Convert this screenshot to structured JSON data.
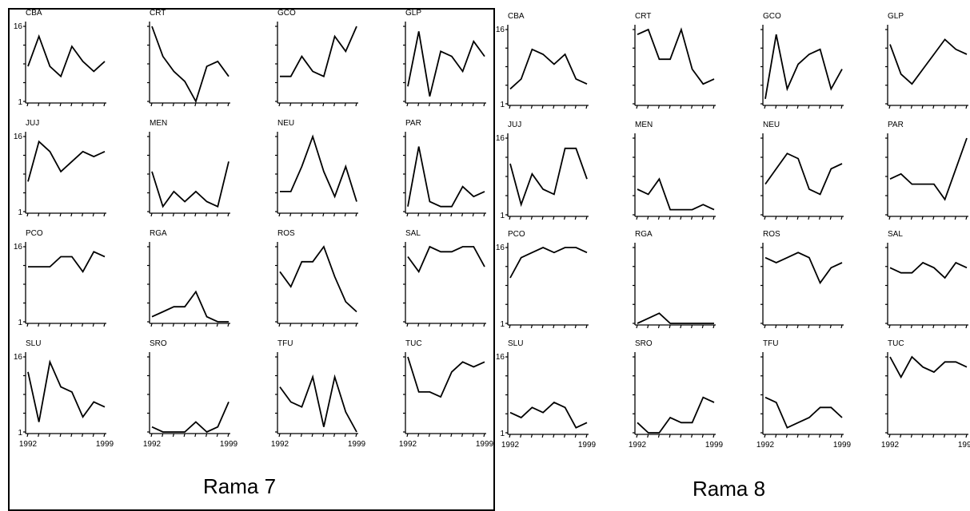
{
  "panels": [
    {
      "title": "Rama 7"
    },
    {
      "title": "Rama 8"
    }
  ],
  "axis": {
    "y_tick_labels": [
      "1",
      "16"
    ],
    "x_tick_labels": [
      "1992",
      "1999"
    ]
  },
  "chart_data": [
    {
      "panel": "Rama 7",
      "type": "line",
      "grid": false,
      "x": [
        1992,
        1993,
        1994,
        1995,
        1996,
        1997,
        1998,
        1999
      ],
      "ylim": [
        1,
        16
      ],
      "charts": [
        {
          "title": "CBA",
          "values": [
            8,
            14,
            8,
            6,
            12,
            9,
            7,
            9
          ]
        },
        {
          "title": "CRT",
          "values": [
            16,
            10,
            7,
            5,
            1,
            8,
            9,
            6
          ]
        },
        {
          "title": "GCO",
          "values": [
            6,
            6,
            10,
            7,
            6,
            14,
            11,
            16
          ]
        },
        {
          "title": "GLP",
          "values": [
            4,
            15,
            2,
            11,
            10,
            7,
            13,
            10
          ]
        },
        {
          "title": "JUJ",
          "values": [
            7,
            15,
            13,
            9,
            11,
            13,
            12,
            13
          ]
        },
        {
          "title": "MEN",
          "values": [
            9,
            2,
            5,
            3,
            5,
            3,
            2,
            11
          ]
        },
        {
          "title": "NEU",
          "values": [
            5,
            5,
            10,
            16,
            9,
            4,
            10,
            3
          ]
        },
        {
          "title": "PAR",
          "values": [
            2,
            14,
            3,
            2,
            2,
            6,
            4,
            5
          ]
        },
        {
          "title": "PCO",
          "values": [
            12,
            12,
            12,
            14,
            14,
            11,
            15,
            14
          ]
        },
        {
          "title": "RGA",
          "values": [
            2,
            3,
            4,
            4,
            7,
            2,
            1,
            1
          ]
        },
        {
          "title": "ROS",
          "values": [
            11,
            8,
            13,
            13,
            16,
            10,
            5,
            3
          ]
        },
        {
          "title": "SAL",
          "values": [
            14,
            11,
            16,
            15,
            15,
            16,
            16,
            12
          ]
        },
        {
          "title": "SLU",
          "values": [
            13,
            3,
            15,
            10,
            9,
            4,
            7,
            6
          ]
        },
        {
          "title": "SRO",
          "values": [
            2,
            1,
            1,
            1,
            3,
            1,
            2,
            7
          ]
        },
        {
          "title": "TFU",
          "values": [
            10,
            7,
            6,
            12,
            2,
            12,
            5,
            1
          ]
        },
        {
          "title": "TUC",
          "values": [
            16,
            9,
            9,
            8,
            13,
            15,
            14,
            15
          ]
        }
      ]
    },
    {
      "panel": "Rama 8",
      "type": "line",
      "grid": false,
      "x": [
        1992,
        1993,
        1994,
        1995,
        1996,
        1997,
        1998,
        1999
      ],
      "ylim": [
        1,
        16
      ],
      "charts": [
        {
          "title": "CBA",
          "values": [
            4,
            6,
            12,
            11,
            9,
            11,
            6,
            5
          ]
        },
        {
          "title": "CRT",
          "values": [
            15,
            16,
            10,
            10,
            16,
            8,
            5,
            6
          ]
        },
        {
          "title": "GCO",
          "values": [
            2,
            15,
            4,
            9,
            11,
            12,
            4,
            8
          ]
        },
        {
          "title": "GLP",
          "values": [
            13,
            7,
            5,
            8,
            11,
            14,
            12,
            11
          ]
        },
        {
          "title": "JUJ",
          "values": [
            11,
            3,
            9,
            6,
            5,
            14,
            14,
            8
          ]
        },
        {
          "title": "MEN",
          "values": [
            6,
            5,
            8,
            2,
            2,
            2,
            3,
            2
          ]
        },
        {
          "title": "NEU",
          "values": [
            7,
            10,
            13,
            12,
            6,
            5,
            10,
            11
          ]
        },
        {
          "title": "PAR",
          "values": [
            8,
            9,
            7,
            7,
            7,
            4,
            10,
            16
          ]
        },
        {
          "title": "PCO",
          "values": [
            10,
            14,
            15,
            16,
            15,
            16,
            16,
            15
          ]
        },
        {
          "title": "RGA",
          "values": [
            1,
            2,
            3,
            1,
            1,
            1,
            1,
            1
          ]
        },
        {
          "title": "ROS",
          "values": [
            14,
            13,
            14,
            15,
            14,
            9,
            12,
            13
          ]
        },
        {
          "title": "SAL",
          "values": [
            12,
            11,
            11,
            13,
            12,
            10,
            13,
            12
          ]
        },
        {
          "title": "SLU",
          "values": [
            5,
            4,
            6,
            5,
            7,
            6,
            2,
            3
          ]
        },
        {
          "title": "SRO",
          "values": [
            3,
            1,
            1,
            4,
            3,
            3,
            8,
            7
          ]
        },
        {
          "title": "TFU",
          "values": [
            8,
            7,
            2,
            3,
            4,
            6,
            6,
            4
          ]
        },
        {
          "title": "TUC",
          "values": [
            16,
            12,
            16,
            14,
            13,
            15,
            15,
            14
          ]
        }
      ]
    }
  ]
}
